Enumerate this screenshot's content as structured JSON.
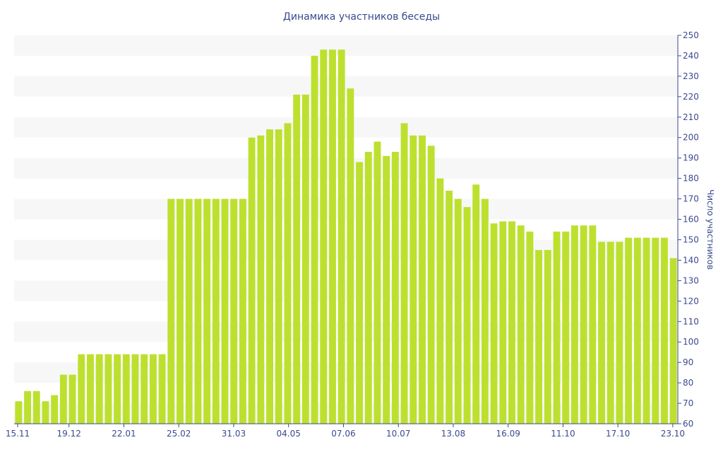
{
  "chart_data": {
    "type": "bar",
    "title": "Динамика участников беседы",
    "xlabel": "",
    "ylabel": "Число участников",
    "ylim": [
      60,
      250
    ],
    "y_ticks": [
      60,
      70,
      80,
      90,
      100,
      110,
      120,
      130,
      140,
      150,
      160,
      170,
      180,
      190,
      200,
      210,
      220,
      230,
      240,
      250
    ],
    "y_axis_side": "right",
    "grid": "alternating horizontal bands",
    "x_tick_labels": [
      "15.11",
      "19.12",
      "22.01",
      "25.02",
      "31.03",
      "04.05",
      "07.06",
      "10.07",
      "13.08",
      "16.09",
      "11.10",
      "17.10",
      "23.10"
    ],
    "x_tick_positions": [
      0,
      6.12,
      12.24,
      18.36,
      24.48,
      30.6,
      36.72,
      42.84,
      48.96,
      55.08,
      61.2,
      67.32,
      73.44
    ],
    "values": [
      71,
      76,
      76,
      71,
      74,
      84,
      84,
      94,
      94,
      94,
      94,
      94,
      94,
      94,
      94,
      94,
      94,
      170,
      170,
      170,
      170,
      170,
      170,
      170,
      170,
      170,
      200,
      201,
      204,
      204,
      207,
      221,
      221,
      240,
      243,
      243,
      243,
      224,
      188,
      193,
      198,
      191,
      193,
      207,
      201,
      201,
      196,
      180,
      174,
      170,
      166,
      177,
      170,
      158,
      159,
      159,
      157,
      154,
      145,
      145,
      154,
      154,
      157,
      157,
      157,
      149,
      149,
      149,
      151,
      151,
      151,
      151,
      151,
      141
    ],
    "bar_color": "#bde02f",
    "band_color": "#f7f7f7",
    "text_color": "#3a4a8c"
  }
}
